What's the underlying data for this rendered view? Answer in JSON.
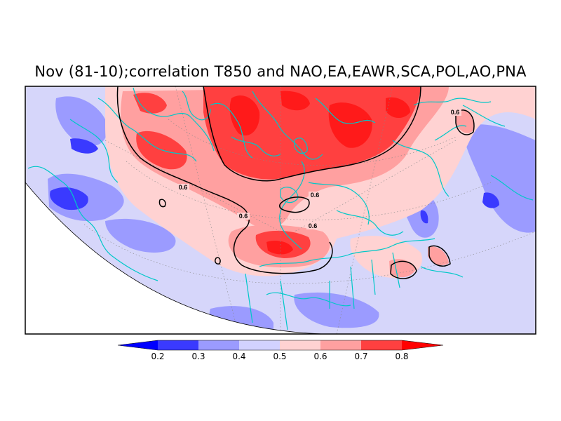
{
  "title": "Nov (81-10);correlation T850 and NAO,EA,EAWR,SCA,POL,AO,PNA",
  "contour_labels": [
    "0.6",
    "0.6",
    "0.6",
    "0.6",
    "0.6"
  ],
  "colorbar": {
    "ticks": [
      "0.2",
      "0.3",
      "0.4",
      "0.5",
      "0.6",
      "0.7",
      "0.8"
    ],
    "colors": [
      "#0000ff",
      "#3a3aff",
      "#9b9bff",
      "#d2d2ff",
      "#ffd2d2",
      "#ffa0a0",
      "#ff4040",
      "#ff0000"
    ]
  },
  "colors": {
    "land_outline": "#00c8c8",
    "contour": "#000000",
    "background_field": "#d6d6fa"
  }
}
